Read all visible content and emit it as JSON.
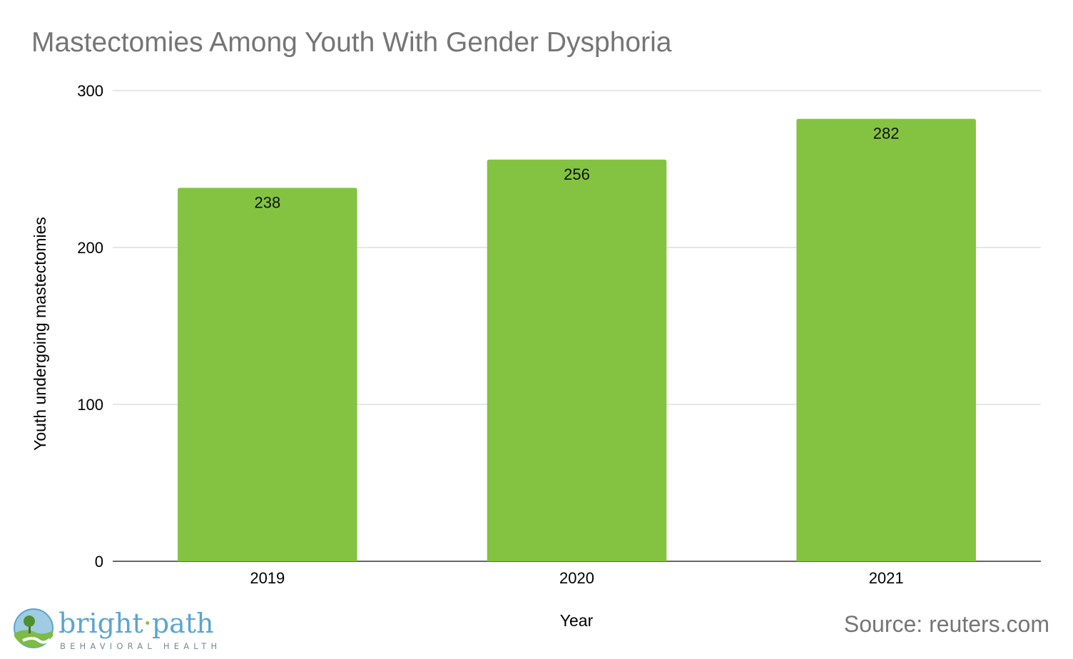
{
  "chart_data": {
    "type": "bar",
    "title": "Mastectomies Among Youth With Gender Dysphoria",
    "categories": [
      "2019",
      "2020",
      "2021"
    ],
    "values": [
      238,
      256,
      282
    ],
    "data_labels": [
      "238",
      "256",
      "282"
    ],
    "xlabel": "Year",
    "ylabel": "Youth undergoing mastectomies",
    "ylim": [
      0,
      300
    ],
    "yticks": [
      "0",
      "100",
      "200",
      "300"
    ],
    "grid": true,
    "legend": "none",
    "bar_color": "#83c341",
    "source": "Source: reuters.com"
  },
  "logo": {
    "word_left": "bright",
    "separator": "·",
    "word_right": "path",
    "tagline": "BEHAVIORAL HEALTH",
    "icon": "tree-landscape-icon",
    "color": "#5aa5d0"
  }
}
